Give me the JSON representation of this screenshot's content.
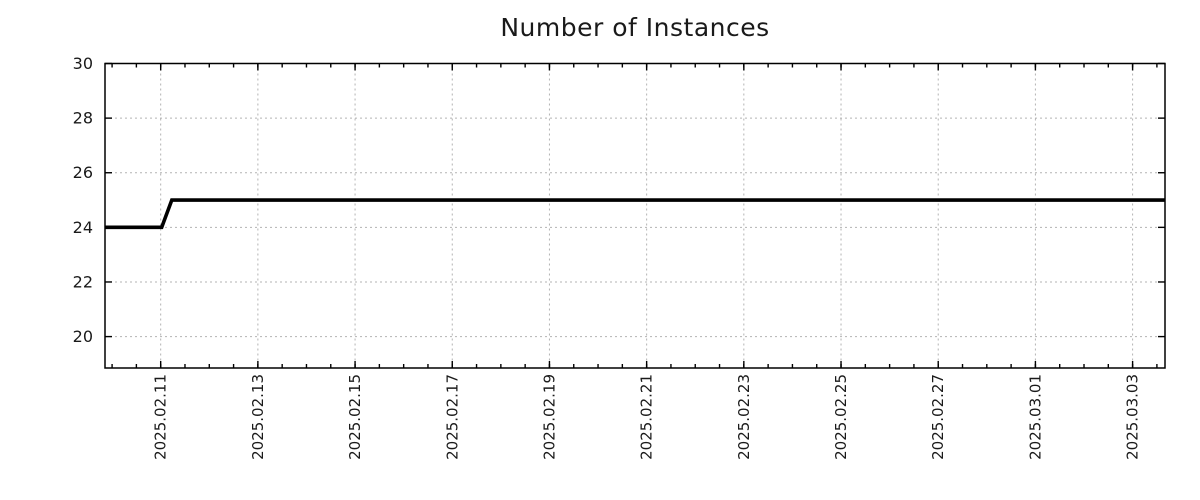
{
  "figure": {
    "background": "#ffffff"
  },
  "chart_data": {
    "type": "line",
    "title": "Number of Instances",
    "legend": "none",
    "x_axis": {
      "scale": "time",
      "range": [
        "2025-02-09 20:30",
        "2025-03-03 16:00"
      ],
      "major_ticks": [
        {
          "date": "2025-02-11",
          "label": "2025.02.11"
        },
        {
          "date": "2025-02-13",
          "label": "2025.02.13"
        },
        {
          "date": "2025-02-15",
          "label": "2025.02.15"
        },
        {
          "date": "2025-02-17",
          "label": "2025.02.17"
        },
        {
          "date": "2025-02-19",
          "label": "2025.02.19"
        },
        {
          "date": "2025-02-21",
          "label": "2025.02.21"
        },
        {
          "date": "2025-02-23",
          "label": "2025.02.23"
        },
        {
          "date": "2025-02-25",
          "label": "2025.02.25"
        },
        {
          "date": "2025-02-27",
          "label": "2025.02.27"
        },
        {
          "date": "2025-03-01",
          "label": "2025.03.01"
        },
        {
          "date": "2025-03-03",
          "label": "2025.03.03"
        }
      ],
      "minor_tick_start": "2025-02-10",
      "minor_tick_interval_hours": 12,
      "grid": true
    },
    "y_axis": {
      "range": [
        18.85,
        30
      ],
      "ticks": [
        20,
        22,
        24,
        26,
        28,
        30
      ],
      "grid": true
    },
    "series": [
      {
        "name": "Number of Instances",
        "color": "#000000",
        "line_width": 3.6,
        "points": [
          {
            "x": "2025-02-09 20:30",
            "y": 24
          },
          {
            "x": "2025-02-11 00:30",
            "y": 24
          },
          {
            "x": "2025-02-11 05:30",
            "y": 25
          },
          {
            "x": "2025-03-03 16:00",
            "y": 25
          }
        ]
      }
    ],
    "colors": {
      "grid": "#b3b3b3",
      "axis": "#000000",
      "text": "#1a1a1a",
      "background": "#ffffff"
    }
  }
}
